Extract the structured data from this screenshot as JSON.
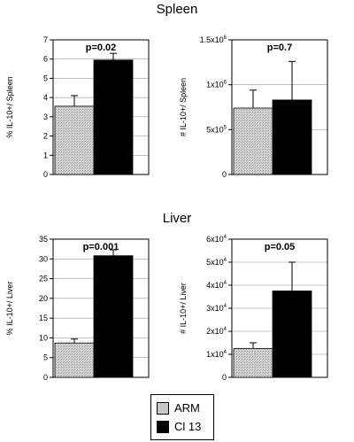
{
  "sections": {
    "top": "Spleen",
    "bottom": "Liver"
  },
  "legend": [
    {
      "label": "ARM",
      "color": "#c8c8c8"
    },
    {
      "label": "Cl 13",
      "color": "#000000"
    }
  ],
  "chart_data": [
    {
      "type": "bar",
      "title": "",
      "ylabel": "% IL-10+/ Spleen",
      "annotation": "p=0.02",
      "ylim": [
        0,
        7
      ],
      "yticks": [
        "0",
        "1",
        "2",
        "3",
        "4",
        "5",
        "6",
        "7"
      ],
      "tickValues": [
        0,
        1,
        2,
        3,
        4,
        5,
        6,
        7
      ],
      "categories": [
        "ARM",
        "Cl 13"
      ],
      "values": [
        3.55,
        5.95
      ],
      "errors": [
        0.55,
        0.35
      ],
      "colors": [
        "#c8c8c8",
        "#000000"
      ],
      "grid": true
    },
    {
      "type": "bar",
      "title": "",
      "ylabel": "# IL-10+/ Spleen",
      "annotation": "p=0.7",
      "ylim": [
        0,
        1500000
      ],
      "yticks": [
        "0",
        "5x10^5",
        "1x10^6",
        "1.5x10^6"
      ],
      "tickValues": [
        0,
        500000,
        1000000,
        1500000
      ],
      "categories": [
        "ARM",
        "Cl 13"
      ],
      "values": [
        740000,
        830000
      ],
      "errors": [
        200000,
        430000
      ],
      "colors": [
        "#c8c8c8",
        "#000000"
      ],
      "grid": true
    },
    {
      "type": "bar",
      "title": "",
      "ylabel": "% IL-10+/ Liver",
      "annotation": "p=0.001",
      "ylim": [
        0,
        35
      ],
      "yticks": [
        "0",
        "5",
        "10",
        "15",
        "20",
        "25",
        "30",
        "35"
      ],
      "tickValues": [
        0,
        5,
        10,
        15,
        20,
        25,
        30,
        35
      ],
      "categories": [
        "ARM",
        "Cl 13"
      ],
      "values": [
        8.7,
        30.8
      ],
      "errors": [
        1.0,
        1.5
      ],
      "colors": [
        "#c8c8c8",
        "#000000"
      ],
      "grid": true
    },
    {
      "type": "bar",
      "title": "",
      "ylabel": "# IL-10+/ Liver",
      "annotation": "p=0.05",
      "ylim": [
        0,
        60000
      ],
      "yticks": [
        "0",
        "1x10^4",
        "2x10^4",
        "3x10^4",
        "4x10^4",
        "5x10^4",
        "6x10^4"
      ],
      "tickValues": [
        0,
        10000,
        20000,
        30000,
        40000,
        50000,
        60000
      ],
      "categories": [
        "ARM",
        "Cl 13"
      ],
      "values": [
        12500,
        37500
      ],
      "errors": [
        2500,
        12500
      ],
      "colors": [
        "#c8c8c8",
        "#000000"
      ],
      "grid": true
    }
  ]
}
